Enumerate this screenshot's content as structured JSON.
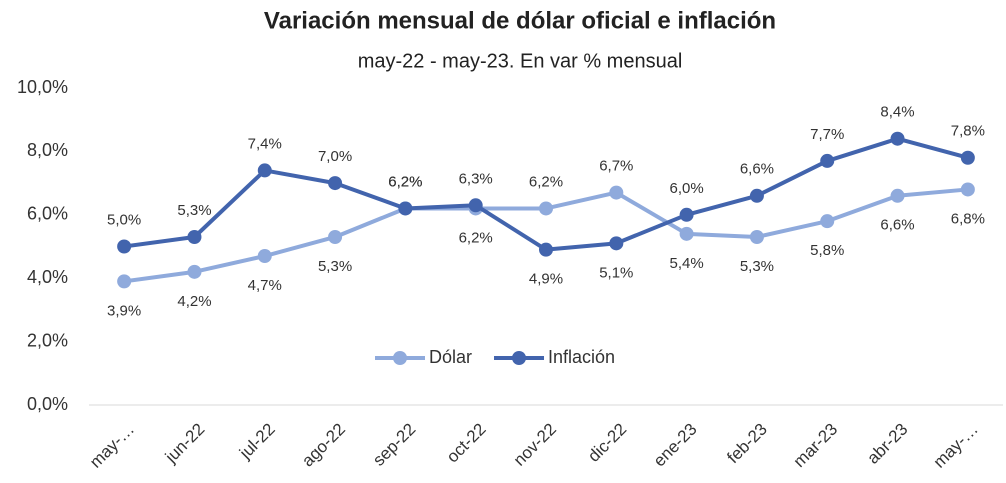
{
  "chart_data": {
    "type": "line",
    "title": "Variación mensual de dólar oficial e inflación",
    "subtitle": "may-22 - may-23. En var % mensual",
    "categories": [
      "may-…",
      "jun-22",
      "jul-22",
      "ago-22",
      "sep-22",
      "oct-22",
      "nov-22",
      "dic-22",
      "ene-23",
      "feb-23",
      "mar-23",
      "abr-23",
      "may-…"
    ],
    "series": [
      {
        "name": "Dólar",
        "color": "#8faadc",
        "values": [
          3.9,
          4.2,
          4.7,
          5.3,
          6.2,
          6.2,
          6.2,
          6.7,
          5.4,
          5.3,
          5.8,
          6.6,
          6.8
        ],
        "value_labels": [
          "3,9%",
          "4,2%",
          "4,7%",
          "5,3%",
          "6,2%",
          "6,2%",
          "6,2%",
          "6,7%",
          "5,4%",
          "5,3%",
          "5,8%",
          "6,6%",
          "6,8%"
        ]
      },
      {
        "name": "Inflación",
        "color": "#4264ad",
        "values": [
          5.0,
          5.3,
          7.4,
          7.0,
          6.2,
          6.3,
          4.9,
          5.1,
          6.0,
          6.6,
          7.7,
          8.4,
          7.8
        ],
        "value_labels": [
          "5,0%",
          "5,3%",
          "7,4%",
          "7,0%",
          "6,2%",
          "6,3%",
          "4,9%",
          "5,1%",
          "6,0%",
          "6,6%",
          "7,7%",
          "8,4%",
          "7,8%"
        ]
      }
    ],
    "ylim": [
      0,
      10
    ],
    "yticks": [
      {
        "value": 0,
        "label": "0,0%"
      },
      {
        "value": 2,
        "label": "2,0%"
      },
      {
        "value": 4,
        "label": "4,0%"
      },
      {
        "value": 6,
        "label": "6,0%"
      },
      {
        "value": 8,
        "label": "8,0%"
      },
      {
        "value": 10,
        "label": "10,0%"
      }
    ],
    "grid": false,
    "legend": "center"
  }
}
